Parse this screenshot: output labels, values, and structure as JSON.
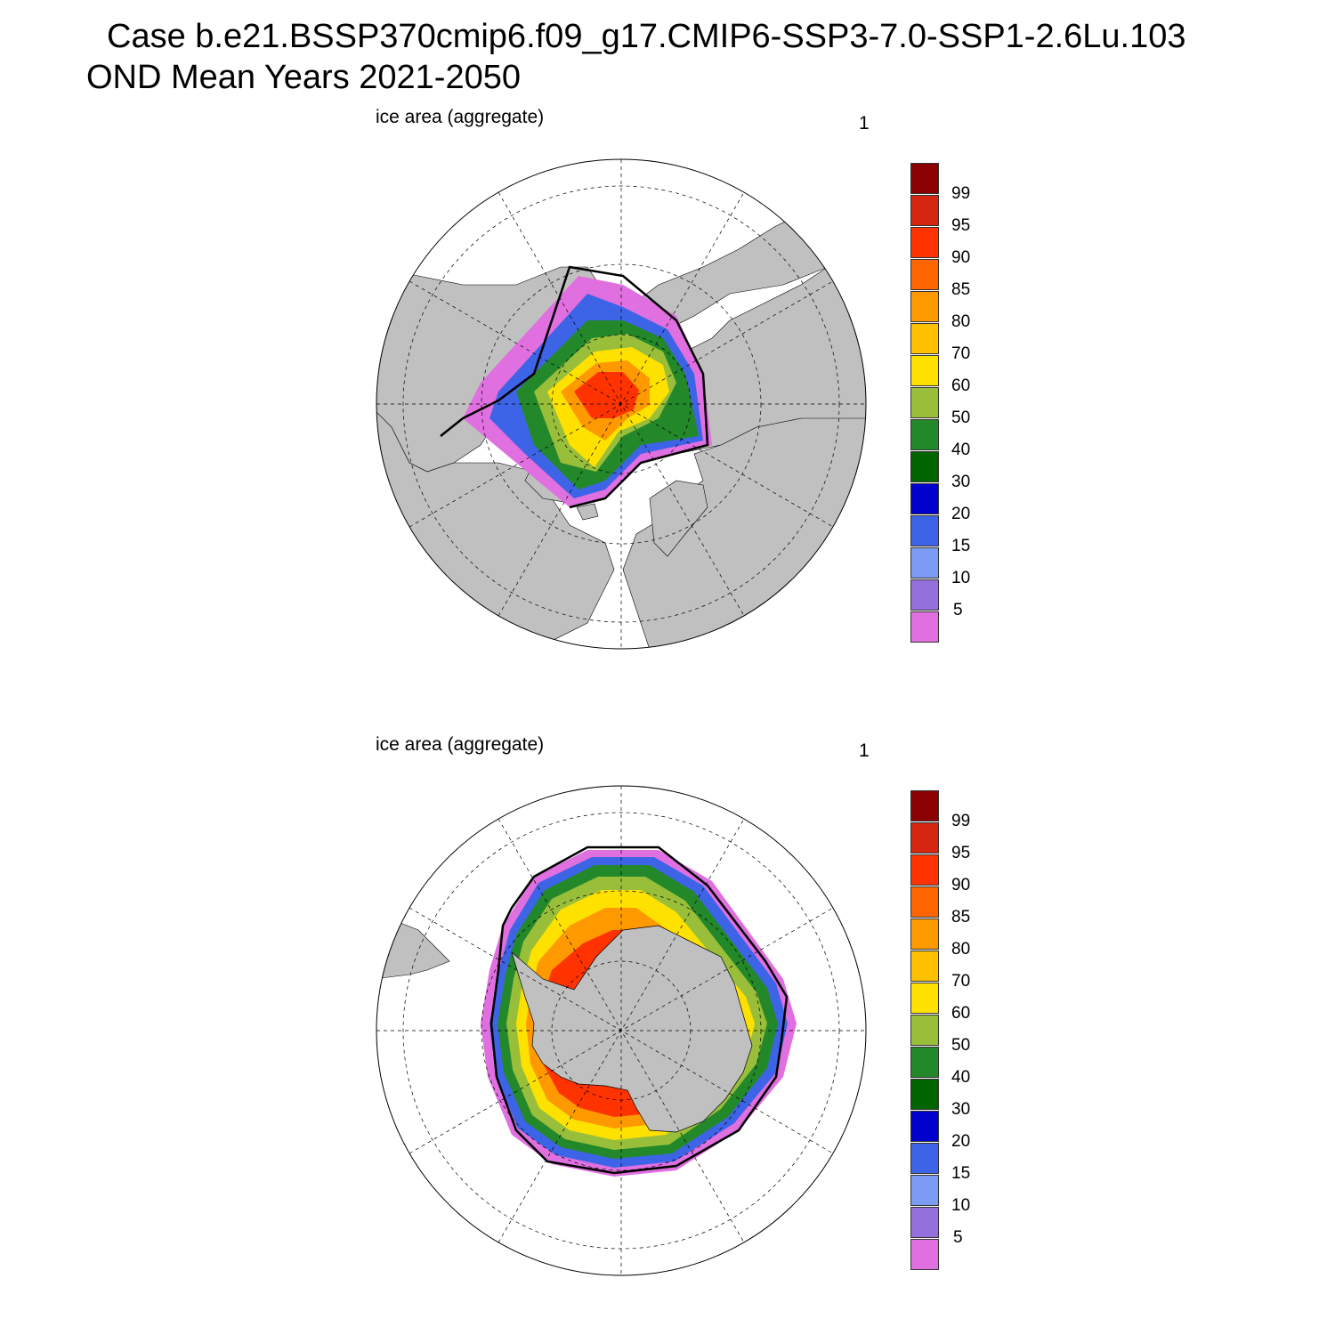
{
  "title": {
    "line1": "Case b.e21.BSSP370cmip6.f09_g17.CMIP6-SSP3-7.0-SSP1-2.6Lu.103",
    "line2": "OND Mean   Years 2021-2050"
  },
  "chart_data": [
    {
      "type": "polar-contour-map",
      "hemisphere": "north",
      "variable_label": "ice area  (aggregate)",
      "units_label": "1",
      "description_levels": [
        5,
        10,
        15,
        20,
        30,
        40,
        50,
        60,
        70,
        80,
        85,
        90,
        95,
        99
      ],
      "max_concentration_region": "central Arctic, 90-99",
      "ice_edge_contour": "black line near 15%"
    },
    {
      "type": "polar-contour-map",
      "hemisphere": "south",
      "variable_label": "ice area  (aggregate)",
      "units_label": "1",
      "description_levels": [
        5,
        10,
        15,
        20,
        30,
        40,
        50,
        60,
        70,
        80,
        85,
        90,
        95,
        99
      ],
      "max_concentration_region": "Weddell and Ross Seas, 80-95",
      "ice_edge_contour": "black line near 15%"
    }
  ],
  "legend": {
    "levels": [
      "99",
      "95",
      "90",
      "85",
      "80",
      "70",
      "60",
      "50",
      "40",
      "30",
      "20",
      "15",
      "10",
      "5"
    ],
    "colors": [
      "#8b0000",
      "#d62612",
      "#ff3300",
      "#ff6600",
      "#ff9900",
      "#ffc000",
      "#ffe100",
      "#99bf3a",
      "#23882a",
      "#006400",
      "#0000cd",
      "#3d64e6",
      "#7b9cf2",
      "#9370db",
      "#e06fe0"
    ]
  },
  "colors": {
    "land": "#c0c0c0",
    "ocean": "#ffffff",
    "contour": "#000000"
  }
}
